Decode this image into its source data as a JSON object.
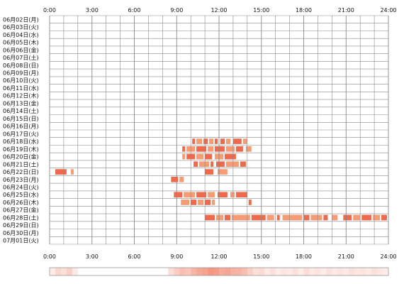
{
  "chart_data": {
    "type": "heatmap",
    "x_unit": "hour",
    "x_range": [
      0,
      24
    ],
    "x_ticks": [
      "0:00",
      "3:00",
      "6:00",
      "9:00",
      "12:00",
      "15:00",
      "18:00",
      "21:00",
      "24:00"
    ],
    "grid": true,
    "colors": {
      "bar_dark": "#ef6a4c",
      "bar_light": "#f79b74",
      "grid": "#8a8a8a",
      "strip_border": "#999999"
    },
    "rows": [
      {
        "label": "06月02日(月)",
        "bars": []
      },
      {
        "label": "06月03日(火)",
        "bars": []
      },
      {
        "label": "06月04日(水)",
        "bars": []
      },
      {
        "label": "06月05日(木)",
        "bars": []
      },
      {
        "label": "06月06日(金)",
        "bars": []
      },
      {
        "label": "06月07日(土)",
        "bars": []
      },
      {
        "label": "06月08日(日)",
        "bars": []
      },
      {
        "label": "06月09日(月)",
        "bars": []
      },
      {
        "label": "06月10日(火)",
        "bars": []
      },
      {
        "label": "06月11日(水)",
        "bars": []
      },
      {
        "label": "06月12日(木)",
        "bars": []
      },
      {
        "label": "06月13日(金)",
        "bars": []
      },
      {
        "label": "06月14日(土)",
        "bars": []
      },
      {
        "label": "06月15日(日)",
        "bars": []
      },
      {
        "label": "06月16日(月)",
        "bars": []
      },
      {
        "label": "06月17日(火)",
        "bars": []
      },
      {
        "label": "06月18日(水)",
        "bars": [
          [
            10.1,
            10.3,
            "d"
          ],
          [
            10.4,
            10.8,
            "l"
          ],
          [
            10.9,
            11.2,
            "d"
          ],
          [
            11.3,
            11.6,
            "l"
          ],
          [
            11.7,
            11.9,
            "d"
          ],
          [
            12.1,
            12.4,
            "d"
          ],
          [
            12.5,
            12.8,
            "l"
          ],
          [
            13.0,
            13.6,
            "d"
          ],
          [
            13.7,
            14.0,
            "l"
          ]
        ]
      },
      {
        "label": "06月19日(木)",
        "bars": [
          [
            9.4,
            9.6,
            "d"
          ],
          [
            9.7,
            10.3,
            "l"
          ],
          [
            10.4,
            11.1,
            "d"
          ],
          [
            11.2,
            11.6,
            "l"
          ],
          [
            11.7,
            12.4,
            "d"
          ],
          [
            12.5,
            13.1,
            "l"
          ],
          [
            13.2,
            13.7,
            "d"
          ],
          [
            13.9,
            14.3,
            "l"
          ]
        ]
      },
      {
        "label": "06月20日(金)",
        "bars": [
          [
            9.4,
            9.6,
            "l"
          ],
          [
            9.7,
            10.3,
            "d"
          ],
          [
            10.4,
            10.9,
            "l"
          ],
          [
            11.0,
            11.5,
            "d"
          ],
          [
            11.7,
            12.3,
            "l"
          ],
          [
            12.4,
            13.2,
            "d"
          ]
        ]
      },
      {
        "label": "06月21日(土)",
        "bars": [
          [
            10.2,
            10.5,
            "d"
          ],
          [
            10.6,
            11.3,
            "l"
          ],
          [
            11.4,
            11.6,
            "d"
          ],
          [
            11.8,
            12.4,
            "d"
          ],
          [
            12.5,
            13.4,
            "l"
          ],
          [
            13.5,
            13.9,
            "d"
          ]
        ]
      },
      {
        "label": "06月22日(日)",
        "bars": [
          [
            0.4,
            1.2,
            "d"
          ],
          [
            1.5,
            1.7,
            "l"
          ],
          [
            11.0,
            11.6,
            "d"
          ],
          [
            11.9,
            12.6,
            "l"
          ]
        ]
      },
      {
        "label": "06月23日(月)",
        "bars": [
          [
            8.6,
            9.1,
            "d"
          ],
          [
            9.2,
            9.5,
            "l"
          ]
        ]
      },
      {
        "label": "06月24日(火)",
        "bars": []
      },
      {
        "label": "06月25日(水)",
        "bars": [
          [
            8.8,
            9.4,
            "d"
          ],
          [
            9.5,
            10.3,
            "l"
          ],
          [
            10.4,
            11.1,
            "d"
          ],
          [
            11.2,
            11.7,
            "l"
          ],
          [
            11.9,
            12.6,
            "d"
          ],
          [
            12.8,
            13.1,
            "l"
          ],
          [
            13.2,
            14.0,
            "d"
          ]
        ]
      },
      {
        "label": "06月26日(木)",
        "bars": [
          [
            9.3,
            9.9,
            "l"
          ],
          [
            10.0,
            10.4,
            "d"
          ],
          [
            10.5,
            10.9,
            "l"
          ],
          [
            11.0,
            11.4,
            "d"
          ],
          [
            11.5,
            11.7,
            "l"
          ],
          [
            14.1,
            14.3,
            "d"
          ]
        ]
      },
      {
        "label": "06月27日(金)",
        "bars": []
      },
      {
        "label": "06月28日(土)",
        "bars": [
          [
            11.0,
            11.7,
            "d"
          ],
          [
            11.8,
            12.3,
            "l"
          ],
          [
            12.4,
            12.8,
            "d"
          ],
          [
            12.9,
            14.2,
            "l"
          ],
          [
            14.3,
            15.3,
            "d"
          ],
          [
            15.4,
            15.9,
            "l"
          ],
          [
            16.1,
            16.3,
            "d"
          ],
          [
            16.5,
            17.9,
            "l"
          ],
          [
            18.0,
            18.4,
            "d"
          ],
          [
            18.5,
            19.3,
            "l"
          ],
          [
            19.4,
            19.7,
            "d"
          ],
          [
            20.0,
            20.4,
            "l"
          ],
          [
            20.8,
            21.4,
            "d"
          ],
          [
            21.5,
            22.0,
            "l"
          ],
          [
            22.1,
            22.8,
            "d"
          ],
          [
            22.9,
            23.4,
            "l"
          ],
          [
            23.5,
            23.9,
            "d"
          ]
        ]
      },
      {
        "label": "06月29日(日)",
        "bars": []
      },
      {
        "label": "06月30日(月)",
        "bars": []
      },
      {
        "label": "07月01日(火)",
        "bars": []
      }
    ],
    "density_strip": [
      [
        0.0,
        0.4,
        0.12
      ],
      [
        0.4,
        0.8,
        0.28
      ],
      [
        0.8,
        1.2,
        0.2
      ],
      [
        1.2,
        1.6,
        0.32
      ],
      [
        1.6,
        2.0,
        0.14
      ],
      [
        8.4,
        8.8,
        0.22
      ],
      [
        8.8,
        9.2,
        0.34
      ],
      [
        9.2,
        9.6,
        0.42
      ],
      [
        9.6,
        10.0,
        0.38
      ],
      [
        10.0,
        10.4,
        0.5
      ],
      [
        10.4,
        10.8,
        0.58
      ],
      [
        10.8,
        11.2,
        0.62
      ],
      [
        11.2,
        11.6,
        0.7
      ],
      [
        11.6,
        12.0,
        0.66
      ],
      [
        12.0,
        12.4,
        0.56
      ],
      [
        12.4,
        12.8,
        0.6
      ],
      [
        12.8,
        13.2,
        0.52
      ],
      [
        13.2,
        13.6,
        0.5
      ],
      [
        13.6,
        14.0,
        0.44
      ],
      [
        14.0,
        14.4,
        0.32
      ],
      [
        14.4,
        14.8,
        0.2
      ],
      [
        14.8,
        15.2,
        0.24
      ],
      [
        15.2,
        15.6,
        0.14
      ],
      [
        15.6,
        16.0,
        0.2
      ],
      [
        16.0,
        16.4,
        0.12
      ],
      [
        16.4,
        16.8,
        0.18
      ],
      [
        16.8,
        17.2,
        0.14
      ],
      [
        17.2,
        17.6,
        0.2
      ],
      [
        17.6,
        18.0,
        0.12
      ],
      [
        18.0,
        18.4,
        0.22
      ],
      [
        18.4,
        18.8,
        0.14
      ],
      [
        18.8,
        19.2,
        0.18
      ],
      [
        19.2,
        19.6,
        0.12
      ],
      [
        19.6,
        20.0,
        0.2
      ],
      [
        20.0,
        20.4,
        0.14
      ],
      [
        20.4,
        20.8,
        0.18
      ],
      [
        20.8,
        21.2,
        0.14
      ],
      [
        21.2,
        21.6,
        0.2
      ],
      [
        21.6,
        22.0,
        0.16
      ],
      [
        22.0,
        22.4,
        0.18
      ],
      [
        22.4,
        22.8,
        0.14
      ],
      [
        22.8,
        23.2,
        0.2
      ],
      [
        23.2,
        23.6,
        0.16
      ],
      [
        23.6,
        24.0,
        0.12
      ]
    ]
  }
}
